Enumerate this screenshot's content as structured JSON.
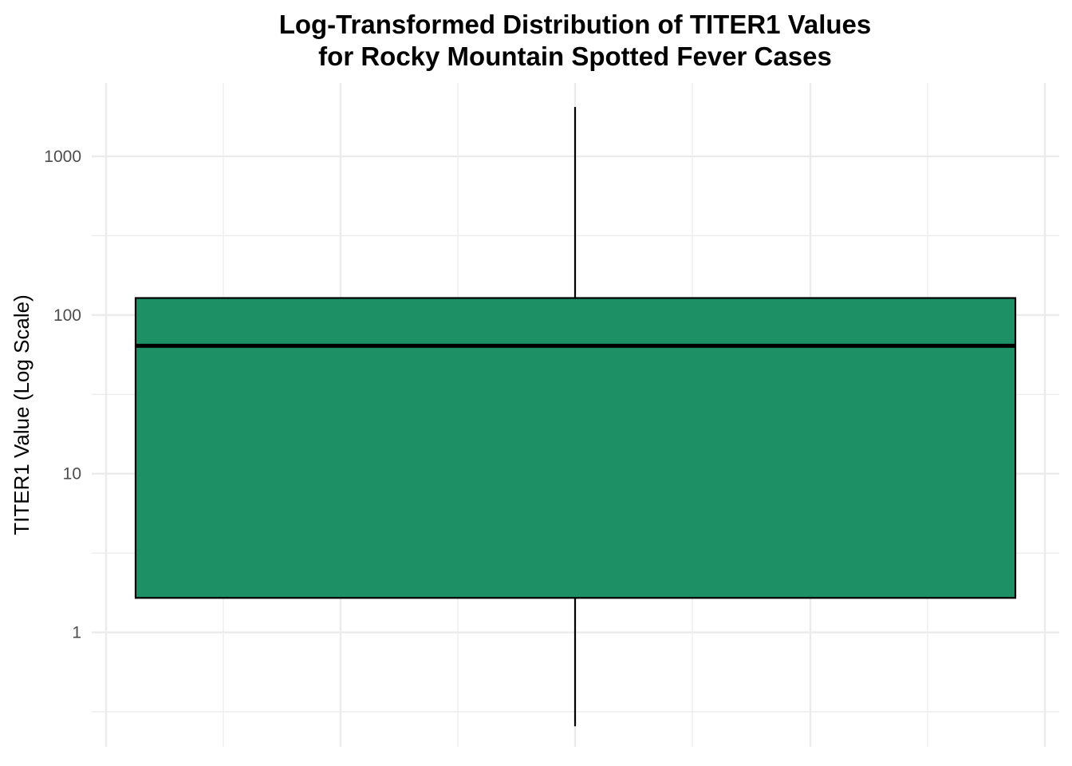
{
  "chart_data": {
    "type": "boxplot",
    "title_lines": [
      "Log-Transformed Distribution of TITER1 Values",
      "for Rocky Mountain Spotted Fever Cases"
    ],
    "xlabel": "",
    "ylabel": "TITER1 Value (Log Scale)",
    "y_scale": "log10",
    "ylim": [
      0.19,
      2900
    ],
    "y_ticks": [
      {
        "value": 1,
        "label": "1"
      },
      {
        "value": 10,
        "label": "10"
      },
      {
        "value": 100,
        "label": "100"
      },
      {
        "value": 1000,
        "label": "1000"
      }
    ],
    "grid": true,
    "legend": "none",
    "box": {
      "whisker_low": 0.256,
      "q1": 1.65,
      "median": 64,
      "q3": 128,
      "whisker_high": 2048
    },
    "colors": {
      "box_fill": "#1D9066",
      "box_stroke": "#000000",
      "grid": "#EBEBEB"
    }
  }
}
